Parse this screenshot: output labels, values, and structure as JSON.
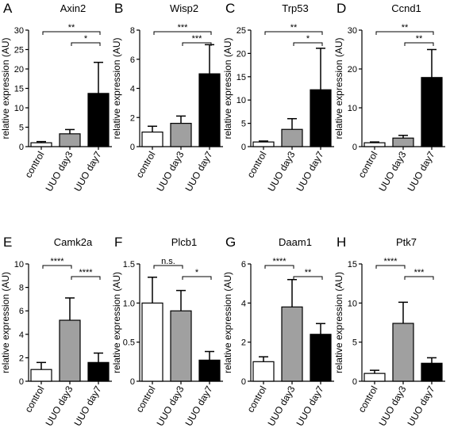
{
  "charts": [
    {
      "letter": "A",
      "title": "Axin2",
      "ylabel": "relative expression (AU)",
      "ylim": [
        0,
        30
      ],
      "ticks": [
        "0",
        "5",
        "10",
        "15",
        "20",
        "25",
        "30"
      ],
      "categories": [
        "control",
        "UUO day3",
        "UUO day7"
      ],
      "values": [
        1.0,
        3.3,
        13.7
      ],
      "errors": [
        0.3,
        1.1,
        8.0
      ],
      "fills": [
        "#ffffff",
        "#a0a0a0",
        "#000000"
      ],
      "sig": [
        {
          "from": 0,
          "to": 2,
          "level": 0,
          "label": "**"
        },
        {
          "from": 1,
          "to": 2,
          "level": 1,
          "label": "*"
        }
      ]
    },
    {
      "letter": "B",
      "title": "Wisp2",
      "ylabel": "relative expression (AU)",
      "ylim": [
        0,
        8
      ],
      "ticks": [
        "0",
        "2",
        "4",
        "6",
        "8"
      ],
      "categories": [
        "control",
        "UUO day3",
        "UUO day7"
      ],
      "values": [
        1.0,
        1.6,
        5.0
      ],
      "errors": [
        0.4,
        0.5,
        2.0
      ],
      "fills": [
        "#ffffff",
        "#a0a0a0",
        "#000000"
      ],
      "sig": [
        {
          "from": 0,
          "to": 2,
          "level": 0,
          "label": "***"
        },
        {
          "from": 1,
          "to": 2,
          "level": 1,
          "label": "***"
        }
      ]
    },
    {
      "letter": "C",
      "title": "Trp53",
      "ylabel": "relative expression (AU)",
      "ylim": [
        0,
        25
      ],
      "ticks": [
        "0",
        "5",
        "10",
        "15",
        "20",
        "25"
      ],
      "categories": [
        "control",
        "UUO day3",
        "UUO day7"
      ],
      "values": [
        1.0,
        3.7,
        12.2
      ],
      "errors": [
        0.2,
        2.3,
        8.9
      ],
      "fills": [
        "#ffffff",
        "#a0a0a0",
        "#000000"
      ],
      "sig": [
        {
          "from": 0,
          "to": 2,
          "level": 0,
          "label": "**"
        },
        {
          "from": 1,
          "to": 2,
          "level": 1,
          "label": "*"
        }
      ]
    },
    {
      "letter": "D",
      "title": "Ccnd1",
      "ylabel": "relative expression (AU)",
      "ylim": [
        0,
        30
      ],
      "ticks": [
        "0",
        "10",
        "20",
        "30"
      ],
      "categories": [
        "control",
        "UUO day3",
        "UUO day7"
      ],
      "values": [
        1.0,
        2.2,
        17.8
      ],
      "errors": [
        0.2,
        0.7,
        7.2
      ],
      "fills": [
        "#ffffff",
        "#a0a0a0",
        "#000000"
      ],
      "sig": [
        {
          "from": 0,
          "to": 2,
          "level": 0,
          "label": "**"
        },
        {
          "from": 1,
          "to": 2,
          "level": 1,
          "label": "**"
        }
      ]
    },
    {
      "letter": "E",
      "title": "Camk2a",
      "ylabel": "relative expression (AU)",
      "ylim": [
        0,
        10
      ],
      "ticks": [
        "0",
        "2",
        "4",
        "6",
        "8",
        "10"
      ],
      "categories": [
        "control",
        "UUO day3",
        "UUO day7"
      ],
      "values": [
        1.0,
        5.2,
        1.6
      ],
      "errors": [
        0.6,
        1.9,
        0.8
      ],
      "fills": [
        "#ffffff",
        "#a0a0a0",
        "#000000"
      ],
      "sig": [
        {
          "from": 0,
          "to": 1,
          "level": 0,
          "label": "****"
        },
        {
          "from": 1,
          "to": 2,
          "level": 1,
          "label": "****"
        }
      ]
    },
    {
      "letter": "F",
      "title": "Plcb1",
      "ylabel": "relative expression (AU)",
      "ylim": [
        0,
        1.5
      ],
      "ticks": [
        "0",
        "0.5",
        "1.0",
        "1.5"
      ],
      "categories": [
        "control",
        "UUO day3",
        "UUO day7"
      ],
      "values": [
        1.0,
        0.9,
        0.27
      ],
      "errors": [
        0.33,
        0.26,
        0.11
      ],
      "fills": [
        "#ffffff",
        "#a0a0a0",
        "#000000"
      ],
      "sig": [
        {
          "from": 0,
          "to": 1,
          "level": 0,
          "label": "n.s."
        },
        {
          "from": 1,
          "to": 2,
          "level": 1,
          "label": "*"
        }
      ]
    },
    {
      "letter": "G",
      "title": "Daam1",
      "ylabel": "relative expression (AU)",
      "ylim": [
        0,
        6
      ],
      "ticks": [
        "0",
        "2",
        "4",
        "6"
      ],
      "categories": [
        "control",
        "UUO day3",
        "UUO day7"
      ],
      "values": [
        1.0,
        3.8,
        2.4
      ],
      "errors": [
        0.25,
        1.4,
        0.55
      ],
      "fills": [
        "#ffffff",
        "#a0a0a0",
        "#000000"
      ],
      "sig": [
        {
          "from": 0,
          "to": 1,
          "level": 0,
          "label": "****"
        },
        {
          "from": 1,
          "to": 2,
          "level": 1,
          "label": "**"
        }
      ]
    },
    {
      "letter": "H",
      "title": "Ptk7",
      "ylabel": "relative expression (AU)",
      "ylim": [
        0,
        15
      ],
      "ticks": [
        "0",
        "5",
        "10",
        "15"
      ],
      "categories": [
        "control",
        "UUO day3",
        "UUO day7"
      ],
      "values": [
        1.0,
        7.4,
        2.3
      ],
      "errors": [
        0.4,
        2.7,
        0.7
      ],
      "fills": [
        "#ffffff",
        "#a0a0a0",
        "#000000"
      ],
      "sig": [
        {
          "from": 0,
          "to": 1,
          "level": 0,
          "label": "****"
        },
        {
          "from": 1,
          "to": 2,
          "level": 1,
          "label": "***"
        }
      ]
    }
  ]
}
